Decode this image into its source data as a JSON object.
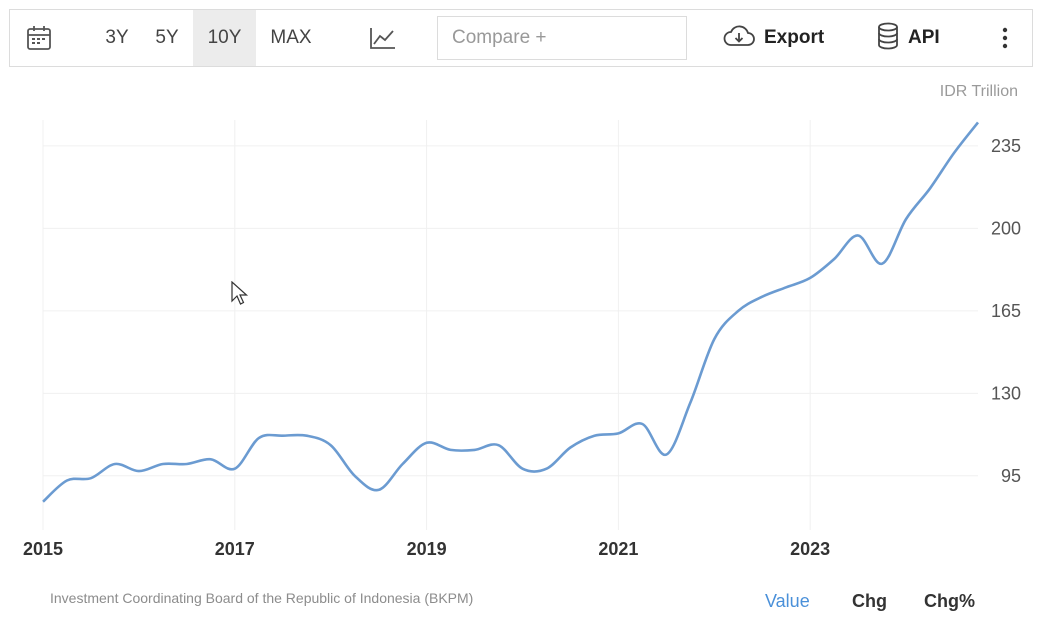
{
  "toolbar": {
    "ranges": [
      "3Y",
      "5Y",
      "10Y",
      "MAX"
    ],
    "active_range": "10Y",
    "compare_placeholder": "Compare +",
    "export_label": "Export",
    "api_label": "API",
    "icons": [
      "calendar-icon",
      "line-chart-icon",
      "cloud-download-icon",
      "database-icon",
      "more-vertical-icon"
    ]
  },
  "chart_data": {
    "type": "line",
    "ylabel": "IDR Trillion",
    "x_tick_labels": [
      "2015",
      "2017",
      "2019",
      "2021",
      "2023"
    ],
    "y_tick_labels": [
      "95",
      "130",
      "165",
      "200",
      "235"
    ],
    "ylim": [
      72,
      246
    ],
    "xlim": [
      2015.0,
      2024.75
    ],
    "grid": true,
    "y_axis_position": "right",
    "series_color": "#6b9bd1",
    "x": [
      2015.0,
      2015.25,
      2015.5,
      2015.75,
      2016.0,
      2016.25,
      2016.5,
      2016.75,
      2017.0,
      2017.25,
      2017.5,
      2017.75,
      2018.0,
      2018.25,
      2018.5,
      2018.75,
      2019.0,
      2019.25,
      2019.5,
      2019.75,
      2020.0,
      2020.25,
      2020.5,
      2020.75,
      2021.0,
      2021.25,
      2021.5,
      2021.75,
      2022.0,
      2022.25,
      2022.5,
      2022.75,
      2023.0,
      2023.25,
      2023.5,
      2023.75,
      2024.0,
      2024.25,
      2024.5,
      2024.75
    ],
    "values": [
      84,
      93,
      94,
      100,
      97,
      100,
      100,
      102,
      98,
      111,
      112,
      112,
      108,
      95,
      89,
      100,
      109,
      106,
      106,
      108,
      98,
      98,
      107,
      112,
      113,
      117,
      104,
      126,
      153,
      165,
      171,
      175,
      179,
      187,
      197,
      185,
      204,
      217,
      232,
      245
    ]
  },
  "footer": {
    "source": "Investment Coordinating Board of the Republic of Indonesia (BKPM)",
    "tabs": [
      "Value",
      "Chg",
      "Chg%"
    ],
    "active_tab": "Value"
  }
}
